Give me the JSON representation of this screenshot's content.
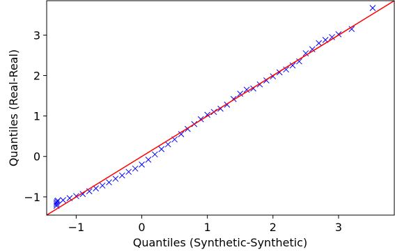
{
  "chart_data": {
    "type": "scatter",
    "xlabel": "Quantiles (Synthetic-Synthetic)",
    "ylabel": "Quantiles (Real-Real)",
    "xlim": [
      -1.45,
      3.85
    ],
    "ylim": [
      -1.45,
      3.85
    ],
    "xticks": [
      -1,
      0,
      1,
      2,
      3
    ],
    "yticks": [
      -1,
      0,
      1,
      2,
      3
    ],
    "xtick_labels": [
      "−1",
      "0",
      "1",
      "2",
      "3"
    ],
    "ytick_labels": [
      "−1",
      "0",
      "1",
      "2",
      "3"
    ],
    "marker": "x",
    "grid": false,
    "marker_color": "#0000ff",
    "line_color": "#ff0000",
    "reference_line": {
      "slope": 1,
      "intercept": 0
    },
    "points": [
      [
        -1.3,
        -1.22
      ],
      [
        -1.3,
        -1.18
      ],
      [
        -1.3,
        -1.14
      ],
      [
        -1.29,
        -1.11
      ],
      [
        -1.28,
        -1.09
      ],
      [
        -1.2,
        -1.08
      ],
      [
        -1.1,
        -1.03
      ],
      [
        -1.0,
        -0.98
      ],
      [
        -0.9,
        -0.93
      ],
      [
        -0.8,
        -0.86
      ],
      [
        -0.7,
        -0.79
      ],
      [
        -0.6,
        -0.72
      ],
      [
        -0.5,
        -0.64
      ],
      [
        -0.4,
        -0.55
      ],
      [
        -0.3,
        -0.47
      ],
      [
        -0.2,
        -0.38
      ],
      [
        -0.1,
        -0.3
      ],
      [
        0.0,
        -0.2
      ],
      [
        0.1,
        -0.08
      ],
      [
        0.2,
        0.05
      ],
      [
        0.3,
        0.18
      ],
      [
        0.4,
        0.3
      ],
      [
        0.5,
        0.42
      ],
      [
        0.6,
        0.55
      ],
      [
        0.7,
        0.68
      ],
      [
        0.8,
        0.8
      ],
      [
        0.9,
        0.92
      ],
      [
        1.0,
        1.03
      ],
      [
        1.1,
        1.1
      ],
      [
        1.2,
        1.18
      ],
      [
        1.3,
        1.28
      ],
      [
        1.4,
        1.42
      ],
      [
        1.5,
        1.55
      ],
      [
        1.6,
        1.65
      ],
      [
        1.7,
        1.68
      ],
      [
        1.8,
        1.78
      ],
      [
        1.9,
        1.88
      ],
      [
        2.0,
        1.98
      ],
      [
        2.1,
        2.08
      ],
      [
        2.2,
        2.15
      ],
      [
        2.3,
        2.25
      ],
      [
        2.4,
        2.35
      ],
      [
        2.5,
        2.55
      ],
      [
        2.6,
        2.65
      ],
      [
        2.7,
        2.8
      ],
      [
        2.8,
        2.88
      ],
      [
        2.9,
        2.95
      ],
      [
        3.0,
        3.02
      ],
      [
        3.2,
        3.15
      ],
      [
        3.52,
        3.67
      ]
    ]
  }
}
